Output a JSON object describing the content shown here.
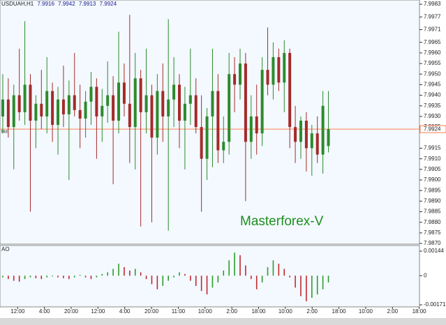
{
  "chart_data": [
    {
      "type": "candlestick",
      "title": "USDUAH,H1",
      "header_values": [
        7.9916,
        7.9942,
        7.9913,
        7.9924
      ],
      "watermark": "Masterforex-V",
      "bid_label": "Bid",
      "bid": 7.9924,
      "bid_color": "#ff7f50",
      "up_color": "#2d8a2d",
      "down_color": "#a52a2a",
      "xlim": [
        0,
        76
      ],
      "ylim": [
        7.98697,
        7.9985
      ],
      "yticks": [
        {
          "value": 7.9983,
          "label": "7.9983"
        },
        {
          "value": 7.9977,
          "label": "7.9977"
        },
        {
          "value": 7.9971,
          "label": "7.9971"
        },
        {
          "value": 7.9965,
          "label": "7.9965"
        },
        {
          "value": 7.996,
          "label": "7.9960"
        },
        {
          "value": 7.9955,
          "label": "7.9955"
        },
        {
          "value": 7.995,
          "label": "7.9950"
        },
        {
          "value": 7.9945,
          "label": "7.9945"
        },
        {
          "value": 7.994,
          "label": "7.9940"
        },
        {
          "value": 7.9935,
          "label": "7.9935"
        },
        {
          "value": 7.993,
          "label": "7.9930"
        },
        {
          "value": 7.9925,
          "label": "7.9925"
        },
        {
          "value": 7.9915,
          "label": "7.9915"
        },
        {
          "value": 7.991,
          "label": "7.9910"
        },
        {
          "value": 7.9905,
          "label": "7.9905"
        },
        {
          "value": 7.99,
          "label": "7.9900"
        },
        {
          "value": 7.9895,
          "label": "7.9895"
        },
        {
          "value": 7.989,
          "label": "7.9890"
        },
        {
          "value": 7.9885,
          "label": "7.9885"
        },
        {
          "value": 7.988,
          "label": "7.9880"
        },
        {
          "value": 7.9875,
          "label": "7.9875"
        },
        {
          "value": 7.987,
          "label": "7.9870"
        }
      ],
      "open": [
        7.993,
        7.9938,
        7.9925,
        7.994,
        7.9932,
        7.9945,
        7.9928,
        7.9936,
        7.993,
        7.9942,
        7.9926,
        7.9938,
        7.9931,
        7.994,
        7.9933,
        7.9929,
        7.9937,
        7.9944,
        7.993,
        7.9935,
        7.994,
        7.9928,
        7.9946,
        7.9936,
        7.9925,
        7.9948,
        7.9932,
        7.994,
        7.992,
        7.9942,
        7.993,
        7.9938,
        7.9945,
        7.9928,
        7.9936,
        7.994,
        7.9925,
        7.991,
        7.993,
        7.9942,
        7.9914,
        7.9918,
        7.995,
        7.9945,
        7.9955,
        7.9918,
        7.993,
        7.9922,
        7.9952,
        7.9945,
        7.9958,
        7.9946,
        7.996,
        7.9925,
        7.9918,
        7.9928,
        7.9915,
        7.9922,
        7.9912,
        7.9916
      ],
      "high": [
        7.995,
        7.9948,
        7.9945,
        7.9962,
        7.9975,
        7.995,
        7.994,
        7.9952,
        7.9958,
        7.9946,
        7.9944,
        7.9954,
        7.9947,
        7.996,
        7.9945,
        7.9942,
        7.9951,
        7.9948,
        7.9943,
        7.9956,
        7.9949,
        7.997,
        7.9955,
        7.9978,
        7.996,
        7.9952,
        7.9962,
        7.9945,
        7.995,
        7.9955,
        7.9976,
        7.9958,
        7.995,
        7.9944,
        7.9962,
        7.9948,
        7.994,
        7.9934,
        7.9962,
        7.995,
        7.993,
        7.996,
        7.9958,
        7.9962,
        7.996,
        7.994,
        7.9945,
        7.9958,
        7.9972,
        7.9965,
        7.9962,
        7.9966,
        7.9962,
        7.9935,
        7.993,
        7.9932,
        7.9926,
        7.993,
        7.9942,
        7.9942
      ],
      "low": [
        7.9922,
        7.992,
        7.9905,
        7.9928,
        7.9926,
        7.9885,
        7.9915,
        7.9924,
        7.9922,
        7.9918,
        7.9912,
        7.9925,
        7.99,
        7.993,
        7.9915,
        7.992,
        7.9926,
        7.991,
        7.9918,
        7.9927,
        7.9898,
        7.9922,
        7.993,
        7.9908,
        7.9905,
        7.9878,
        7.9922,
        7.988,
        7.9912,
        7.9918,
        7.9876,
        7.9925,
        7.9915,
        7.9905,
        7.9926,
        7.9922,
        7.9885,
        7.99,
        7.9906,
        7.9908,
        7.9908,
        7.9912,
        7.9932,
        7.9938,
        7.989,
        7.991,
        7.9912,
        7.9916,
        7.994,
        7.9938,
        7.9942,
        7.9932,
        7.9915,
        7.9908,
        7.991,
        7.9904,
        7.9902,
        7.9908,
        7.9903,
        7.9913
      ],
      "close": [
        7.9938,
        7.9925,
        7.994,
        7.9932,
        7.9945,
        7.9928,
        7.9936,
        7.993,
        7.9942,
        7.9926,
        7.9938,
        7.9931,
        7.994,
        7.9933,
        7.9929,
        7.9937,
        7.9944,
        7.993,
        7.9935,
        7.994,
        7.9928,
        7.9946,
        7.9936,
        7.9925,
        7.9948,
        7.9932,
        7.994,
        7.992,
        7.9942,
        7.993,
        7.9938,
        7.9945,
        7.9928,
        7.9936,
        7.994,
        7.9925,
        7.991,
        7.993,
        7.9942,
        7.9914,
        7.9918,
        7.995,
        7.9945,
        7.9955,
        7.9918,
        7.993,
        7.9922,
        7.9952,
        7.9945,
        7.9958,
        7.9946,
        7.996,
        7.9925,
        7.9918,
        7.9928,
        7.9915,
        7.9922,
        7.9912,
        7.9935,
        7.9924
      ]
    },
    {
      "type": "bar",
      "title": "AO",
      "up_color": "#2e9b2e",
      "down_color": "#c0282d",
      "xlim": [
        0,
        76
      ],
      "ylim": [
        -0.00183,
        0.00177
      ],
      "yticks": [
        0.00144,
        0,
        -0.00171
      ],
      "xticks": [
        {
          "value": 3.2,
          "label": "12:00"
        },
        {
          "value": 8.05,
          "label": "4:00"
        },
        {
          "value": 12.9,
          "label": "20:00"
        },
        {
          "value": 17.75,
          "label": "12:00"
        },
        {
          "value": 22.6,
          "label": "4:00"
        },
        {
          "value": 27.45,
          "label": "20:00"
        },
        {
          "value": 32.3,
          "label": "11:00"
        },
        {
          "value": 37.15,
          "label": "10:00"
        },
        {
          "value": 42,
          "label": "2:00"
        },
        {
          "value": 46.85,
          "label": "18:00"
        },
        {
          "value": 51.7,
          "label": "10:00"
        },
        {
          "value": 56.55,
          "label": "2:00"
        },
        {
          "value": 61.4,
          "label": "18:00"
        },
        {
          "value": 66.25,
          "label": "10:00"
        },
        {
          "value": 71.1,
          "label": "2:00"
        },
        {
          "value": 75.95,
          "label": "18:00"
        }
      ],
      "values": [
        -0.0001,
        -0.0002,
        -0.0003,
        -0.00035,
        -0.0002,
        -0.0001,
        -0.00015,
        -0.0002,
        -0.0001,
        -5e-05,
        -0.0001,
        -0.00015,
        -0.0002,
        -0.0001,
        5e-05,
        -0.0001,
        -0.0002,
        -0.0001,
        0.0001,
        0.0002,
        0.0004,
        0.0007,
        0.0005,
        0.0003,
        0.0004,
        0.0002,
        -0.0002,
        -0.0005,
        -0.0008,
        -0.0006,
        -0.0003,
        -0.0001,
        0.0002,
        0.0001,
        -0.0003,
        -0.0006,
        -0.0009,
        -0.0011,
        -0.0007,
        -0.0004,
        0.0003,
        0.0009,
        0.00135,
        0.0012,
        0.0006,
        -0.0002,
        -0.0008,
        -0.0004,
        0.0005,
        0.0009,
        0.0007,
        0.0004,
        -0.0001,
        -0.0007,
        -0.0012,
        -0.0015,
        -0.0013,
        -0.0011,
        -0.0008,
        -0.0004
      ]
    }
  ]
}
